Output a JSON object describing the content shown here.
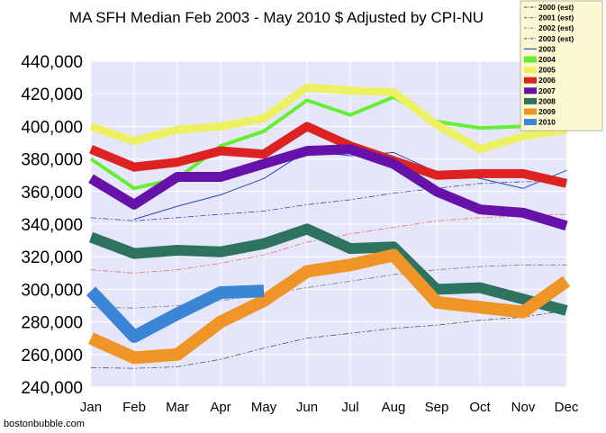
{
  "chart_data": {
    "type": "line",
    "title": "MA SFH Median Feb 2003 - May 2010 $ Adjusted by CPI-NU",
    "credit": "bostonbubble.com",
    "categories": [
      "Jan",
      "Feb",
      "Mar",
      "Apr",
      "May",
      "Jun",
      "Jul",
      "Aug",
      "Sep",
      "Oct",
      "Nov",
      "Dec"
    ],
    "yticks": [
      "240,000",
      "260,000",
      "280,000",
      "300,000",
      "320,000",
      "340,000",
      "360,000",
      "380,000",
      "400,000",
      "420,000",
      "440,000"
    ],
    "ylim": [
      240000,
      440000
    ],
    "grid": true,
    "legend_position": "top-right",
    "colors": {
      "plot_bg": "#e6e6fa",
      "grid": "#ffffff",
      "legend_bg": "#fbf8d2",
      "legend_border": "#b9b19a"
    },
    "series": [
      {
        "name": "2000 (est)",
        "color": "#555555",
        "style": "dashdot",
        "width": 0.8,
        "values": [
          252000,
          251500,
          252500,
          257000,
          264000,
          270000,
          273000,
          276000,
          278000,
          281000,
          283000,
          287000
        ]
      },
      {
        "name": "2001 (est)",
        "color": "#777777",
        "style": "dashdot",
        "width": 0.8,
        "values": [
          289000,
          288500,
          290000,
          293000,
          297000,
          301000,
          305000,
          309000,
          312000,
          314000,
          315000,
          315000
        ]
      },
      {
        "name": "2002 (est)",
        "color": "#e07070",
        "style": "dashdot",
        "width": 0.8,
        "values": [
          312000,
          310000,
          312000,
          316000,
          321000,
          329000,
          334000,
          338000,
          342000,
          344000,
          345000,
          346000
        ]
      },
      {
        "name": "2003 (est)",
        "color": "#3050b0",
        "style": "dashdot",
        "width": 0.8,
        "values": [
          344000,
          342000,
          344000,
          346000,
          348000,
          352000,
          355000,
          359000,
          362000,
          365000,
          366000,
          366000
        ]
      },
      {
        "name": "2003",
        "color": "#2a47b8",
        "style": "solid",
        "width": 1,
        "values": [
          null,
          343000,
          351000,
          358000,
          368000,
          385000,
          382000,
          384000,
          372000,
          368000,
          362000,
          373000
        ]
      },
      {
        "name": "2004",
        "color": "#66ee33",
        "style": "solid",
        "width": 4,
        "values": [
          380000,
          362000,
          368000,
          388000,
          397000,
          416000,
          407000,
          418000,
          403000,
          399000,
          400000,
          400000
        ]
      },
      {
        "name": "2005",
        "color": "#eef064",
        "style": "solid",
        "width": 9,
        "values": [
          400000,
          391000,
          398000,
          400000,
          405000,
          424000,
          422000,
          421000,
          401000,
          386000,
          394000,
          398000
        ]
      },
      {
        "name": "2006",
        "color": "#dd2222",
        "style": "solid",
        "width": 10,
        "values": [
          386000,
          375000,
          378000,
          385000,
          383000,
          400000,
          388000,
          379000,
          370000,
          371000,
          371000,
          365000
        ]
      },
      {
        "name": "2007",
        "color": "#6611aa",
        "style": "solid",
        "width": 11,
        "values": [
          368000,
          352000,
          369000,
          369000,
          377000,
          385000,
          386000,
          377000,
          360000,
          349000,
          347000,
          339000
        ]
      },
      {
        "name": "2008",
        "color": "#2e7360",
        "style": "solid",
        "width": 12,
        "values": [
          332000,
          322000,
          324000,
          323000,
          328000,
          337000,
          325000,
          326000,
          300000,
          301000,
          294000,
          287000
        ]
      },
      {
        "name": "2009",
        "color": "#ef9426",
        "style": "solid",
        "width": 14,
        "values": [
          270000,
          258000,
          260000,
          280000,
          293000,
          311000,
          315000,
          321000,
          292000,
          289000,
          286000,
          305000
        ]
      },
      {
        "name": "2010",
        "color": "#3a85d5",
        "style": "solid",
        "width": 14,
        "values": [
          299000,
          271000,
          285000,
          298000,
          299000,
          null,
          null,
          null,
          null,
          null,
          null,
          null
        ]
      }
    ]
  }
}
